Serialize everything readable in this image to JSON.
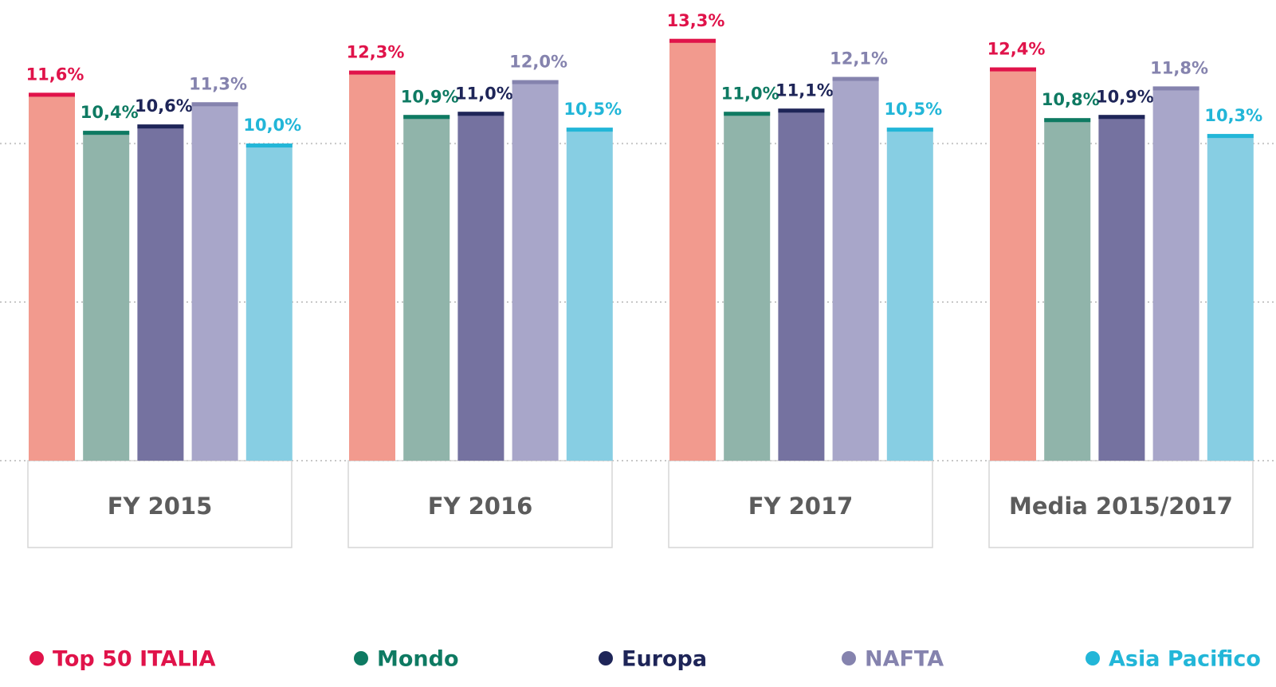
{
  "chart_data": {
    "type": "bar",
    "categories": [
      "FY 2015",
      "FY 2016",
      "FY 2017",
      "Media 2015/2017"
    ],
    "ylim": [
      0,
      14.5
    ],
    "yticks": [
      0,
      5,
      10
    ],
    "grid": true,
    "legend": "bottom",
    "series": [
      {
        "name": "Top 50 ITALIA",
        "color": "#f29a8e",
        "accent_color": "#e0134a",
        "values": [
          11.6,
          12.3,
          13.3,
          12.4
        ],
        "value_labels": [
          "11,6%",
          "12,3%",
          "13,3%",
          "12,4%"
        ]
      },
      {
        "name": "Mondo",
        "color": "#90b4aa",
        "accent_color": "#0e7a62",
        "values": [
          10.4,
          10.9,
          11.0,
          10.8
        ],
        "value_labels": [
          "10,4%",
          "10,9%",
          "11,0%",
          "10,8%"
        ]
      },
      {
        "name": "Europa",
        "color": "#7572a0",
        "accent_color": "#1e2558",
        "values": [
          10.6,
          11.0,
          11.1,
          10.9
        ],
        "value_labels": [
          "10,6%",
          "11,0%",
          "11,1%",
          "10,9%"
        ]
      },
      {
        "name": "NAFTA",
        "color": "#a8a6c9",
        "accent_color": "#8583ae",
        "values": [
          11.3,
          12.0,
          12.1,
          11.8
        ],
        "value_labels": [
          "11,3%",
          "12,0%",
          "12,1%",
          "11,8%"
        ]
      },
      {
        "name": "Asia Pacifico",
        "color": "#87cee3",
        "accent_color": "#22b6d8",
        "values": [
          10.0,
          10.5,
          10.5,
          10.3
        ],
        "value_labels": [
          "10,0%",
          "10,5%",
          "10,5%",
          "10,3%"
        ]
      }
    ]
  }
}
